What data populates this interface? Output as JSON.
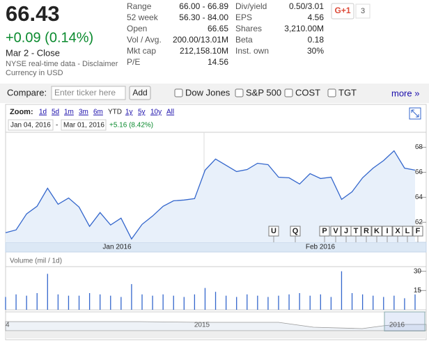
{
  "quote": {
    "price": "66.43",
    "change": "+0.09 (0.14%)",
    "date": "Mar 2 - Close",
    "source": "NYSE real-time data - Disclaimer",
    "currency": "Currency in USD"
  },
  "stats_left": [
    [
      "Range",
      "66.00 - 66.89"
    ],
    [
      "52 week",
      "56.30 - 84.00"
    ],
    [
      "Open",
      "66.65"
    ],
    [
      "Vol / Avg.",
      "200.00/13.01M"
    ],
    [
      "Mkt cap",
      "212,158.10M"
    ],
    [
      "P/E",
      "14.56"
    ]
  ],
  "stats_right": [
    [
      "Div/yield",
      "0.50/3.01"
    ],
    [
      "EPS",
      "4.56"
    ],
    [
      "Shares",
      "3,210.00M"
    ],
    [
      "Beta",
      "0.18"
    ],
    [
      "Inst. own",
      "30%"
    ]
  ],
  "social": {
    "button": "G+1",
    "count": "3"
  },
  "compare": {
    "label": "Compare:",
    "placeholder": "Enter ticker here",
    "button": "Add",
    "options": [
      "Dow Jones",
      "S&P 500",
      "COST",
      "TGT"
    ],
    "more": "more »"
  },
  "chart": {
    "zoom_label": "Zoom:",
    "zoom_options": [
      "1d",
      "5d",
      "1m",
      "3m",
      "6m",
      "YTD",
      "1y",
      "5y",
      "10y",
      "All"
    ],
    "start_date": "Jan 04, 2016",
    "date_separator": "-",
    "end_date": "Mar 01, 2016",
    "range_change": "+5.16 (8.42%)",
    "price": {
      "type": "line",
      "color": "#3366cc",
      "values": [
        61.17,
        61.39,
        62.67,
        63.28,
        64.72,
        63.44,
        63.94,
        63.22,
        61.67,
        62.78,
        61.78,
        62.33,
        60.67,
        61.83,
        62.5,
        63.28,
        63.72,
        63.78,
        63.89,
        66.17,
        67.06,
        66.56,
        66.06,
        66.22,
        66.72,
        66.61,
        65.61,
        65.56,
        65.06,
        65.89,
        65.5,
        65.61,
        63.83,
        64.44,
        65.56,
        66.33,
        66.94,
        67.72,
        66.33,
        66.17
      ],
      "ylim": [
        60.4,
        69.2
      ],
      "yticks": [
        62,
        64,
        66,
        68
      ],
      "x_labels": [
        "Jan 2016",
        "Feb 2016"
      ],
      "news_flags": [
        "U",
        "Q",
        "P",
        "V",
        "J",
        "T",
        "R",
        "K",
        "I",
        "X",
        "L",
        "F"
      ]
    },
    "volume": {
      "type": "bar",
      "label": "Volume (mil / 1d)",
      "color": "#3366cc",
      "values": [
        10,
        12,
        11,
        13,
        28,
        12,
        11,
        11,
        13,
        12,
        11,
        10,
        20,
        12,
        11,
        12,
        11,
        10,
        12,
        17,
        14,
        11,
        10,
        12,
        11,
        10,
        11,
        12,
        13,
        11,
        12,
        10,
        30,
        13,
        12,
        11,
        10,
        11,
        9,
        12
      ],
      "ylim": [
        0,
        33.6
      ],
      "yticks": [
        15,
        30
      ]
    },
    "navigator": {
      "labels": [
        "4",
        "2015",
        "2016"
      ]
    }
  }
}
